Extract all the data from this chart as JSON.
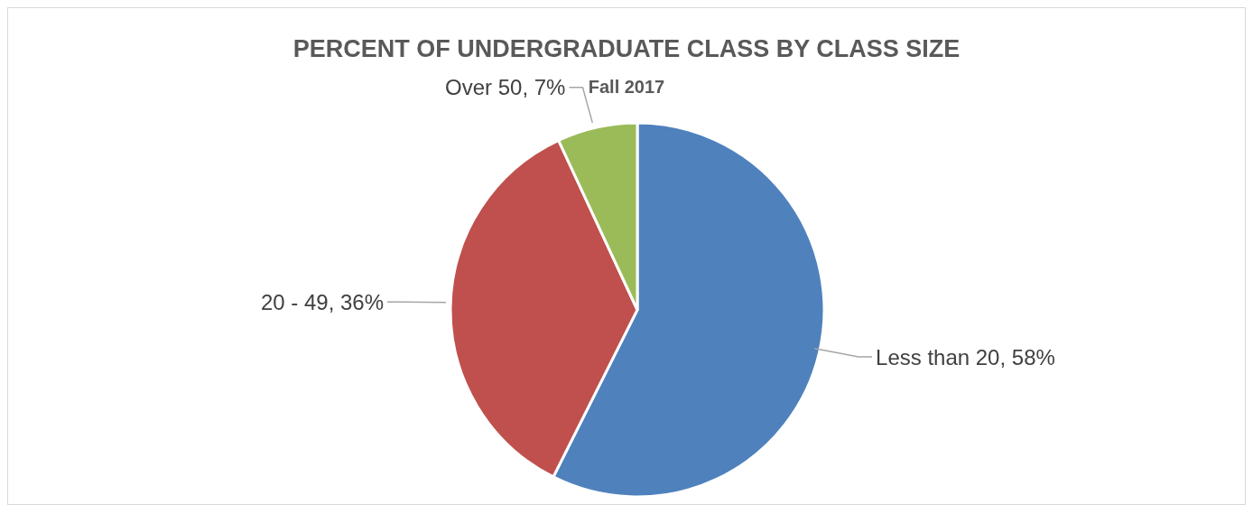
{
  "chart_data": {
    "type": "pie",
    "title": "PERCENT OF UNDERGRADUATE CLASS BY CLASS SIZE",
    "subtitle": "Fall 2017",
    "categories": [
      "Less than 20",
      "20 - 49",
      "Over 50"
    ],
    "values": [
      58,
      36,
      7
    ],
    "value_labels": [
      "58%",
      "36%",
      "7%"
    ],
    "colors": [
      "#4f81bd",
      "#c0504d",
      "#9bbb59"
    ],
    "legend": false
  }
}
